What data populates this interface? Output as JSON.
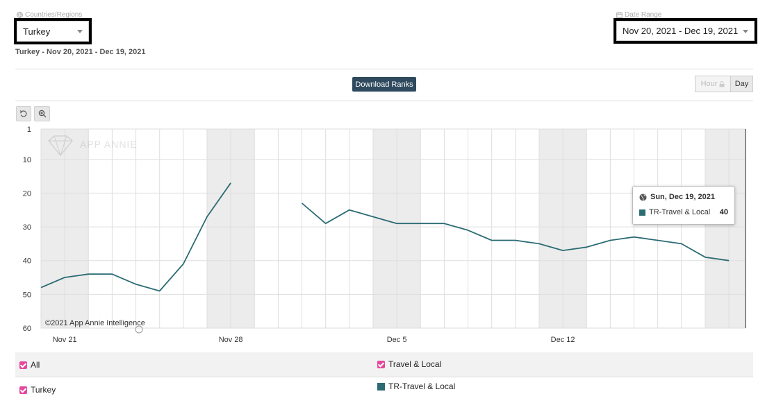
{
  "filters": {
    "country_label": "Countries/Regions",
    "country_value": "Turkey",
    "date_label": "Date Range",
    "date_value": "Nov 20, 2021 - Dec 19, 2021"
  },
  "subtitle": "Turkey - Nov 20, 2021 - Dec 19, 2021",
  "toolbar": {
    "download_label": "Download Ranks",
    "hour_label": "Hour",
    "day_label": "Day"
  },
  "watermark": "APP ANNIE",
  "copyright": "©2021 App Annie Intelligence",
  "tooltip": {
    "date": "Sun, Dec 19, 2021",
    "series": "TR-Travel & Local",
    "value": "40"
  },
  "legend": {
    "all": "All",
    "category": "Travel & Local",
    "country": "Turkey",
    "series": "TR-Travel & Local"
  },
  "colors": {
    "line": "#2b6b74",
    "checkbox": "#e4489c",
    "button": "#2f4a5e",
    "weekend_band": "#ececec"
  },
  "chart_data": {
    "type": "line",
    "y_inverted": true,
    "ylim": [
      1,
      60
    ],
    "yticks": [
      "1",
      "10",
      "20",
      "30",
      "40",
      "50",
      "60"
    ],
    "xticks": [
      "Nov 21",
      "Nov 28",
      "Dec 5",
      "Dec 12"
    ],
    "x": [
      "Nov 20",
      "Nov 21",
      "Nov 22",
      "Nov 23",
      "Nov 24",
      "Nov 25",
      "Nov 26",
      "Nov 27",
      "Nov 28",
      "Nov 29",
      "Nov 30",
      "Dec 1",
      "Dec 2",
      "Dec 3",
      "Dec 4",
      "Dec 5",
      "Dec 6",
      "Dec 7",
      "Dec 8",
      "Dec 9",
      "Dec 10",
      "Dec 11",
      "Dec 12",
      "Dec 13",
      "Dec 14",
      "Dec 15",
      "Dec 16",
      "Dec 17",
      "Dec 18",
      "Dec 19"
    ],
    "series": [
      {
        "name": "TR-Travel & Local",
        "values": [
          48,
          45,
          44,
          44,
          47,
          49,
          41,
          27,
          17,
          null,
          null,
          23,
          29,
          25,
          27,
          29,
          29,
          29,
          31,
          34,
          34,
          35,
          37,
          36,
          34,
          33,
          34,
          35,
          39,
          40
        ]
      }
    ],
    "grid": true,
    "legend_position": "bottom"
  }
}
